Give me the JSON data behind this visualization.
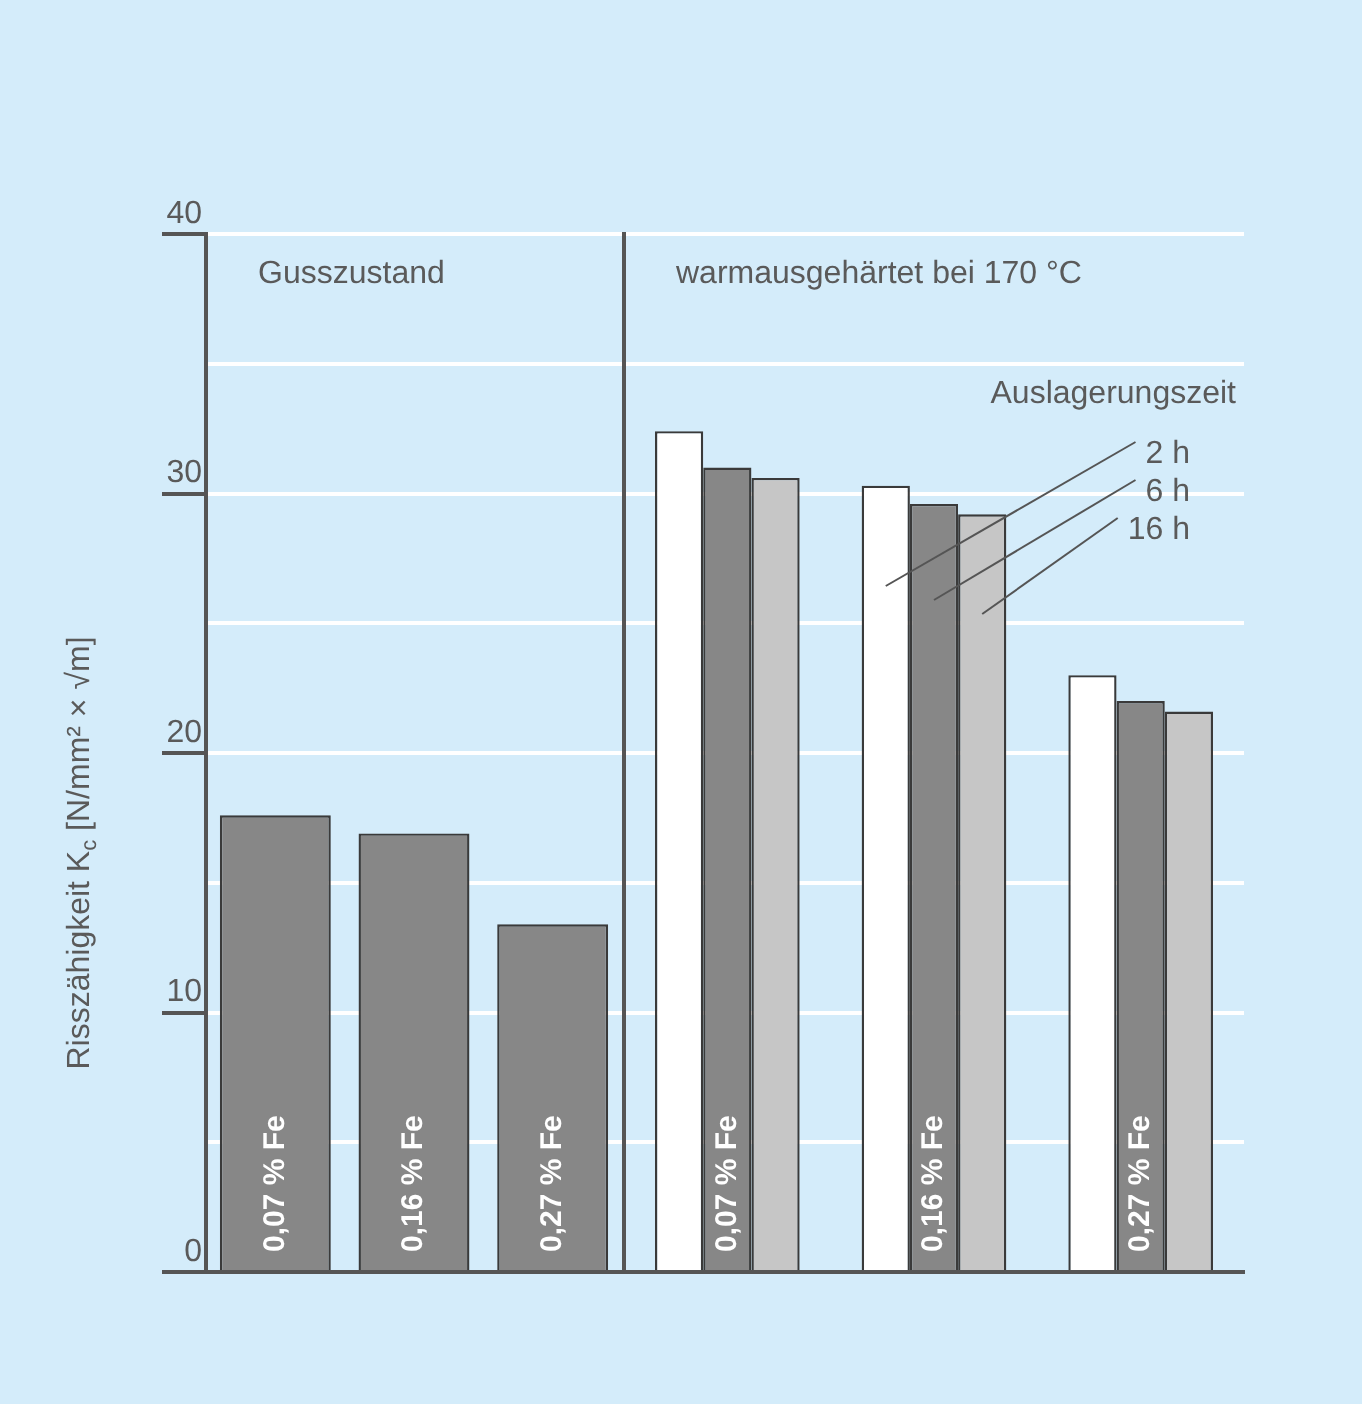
{
  "chart_data": [
    {
      "type": "bar",
      "title": "Gusszustand",
      "categories": [
        "0,07 % Fe",
        "0,16 % Fe",
        "0,27 % Fe"
      ],
      "series": [
        {
          "color": "#878787",
          "values": [
            17.6,
            16.9,
            13.4
          ]
        }
      ],
      "ylabel": "Risszähigkeit K$_{c}$ [N/mm² × √m]",
      "ylim": [
        0,
        40
      ],
      "yticks": [
        0,
        {
          "value": 5,
          "label": null
        },
        10,
        {
          "value": 15,
          "label": null
        },
        20,
        {
          "value": 25,
          "label": null
        },
        30,
        {
          "value": 35,
          "label": null
        },
        40
      ],
      "grid": "y"
    },
    {
      "type": "bar",
      "title": "warmausgehärtet bei 170 °C",
      "categories": [
        "0,07 % Fe",
        "0,16 % Fe",
        "0,27 % Fe"
      ],
      "series": [
        {
          "name": "2 h",
          "color": "#ffffff",
          "values": [
            32.4,
            30.3,
            23.0
          ]
        },
        {
          "name": "6 h",
          "color": "#878787",
          "values": [
            31.0,
            29.6,
            22.0
          ]
        },
        {
          "name": "16 h",
          "color": "#c6c6c6",
          "values": [
            30.6,
            29.2,
            21.6
          ]
        }
      ],
      "legend_title": "Auslagerungszeit",
      "ylim": [
        0,
        40
      ],
      "yticks": [
        0,
        {
          "value": 5,
          "label": null
        },
        10,
        {
          "value": 15,
          "label": null
        },
        20,
        {
          "value": 25,
          "label": null
        },
        30,
        {
          "value": 35,
          "label": null
        },
        40
      ],
      "grid": "y",
      "tick_labels": "x",
      "legend": "top right"
    }
  ]
}
